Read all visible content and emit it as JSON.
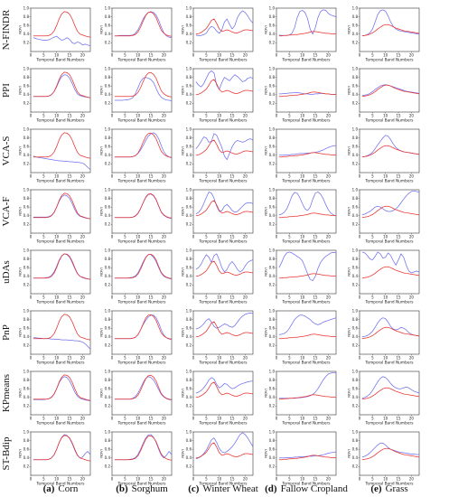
{
  "figure": {
    "rows": [
      "N-FINDR",
      "PPI",
      "VCA-S",
      "VCA-F",
      "uDAs",
      "PnP",
      "KPmeans",
      "ST-Bdip"
    ],
    "columns": [
      {
        "letter": "(a)",
        "name": "Corn"
      },
      {
        "letter": "(b)",
        "name": "Sorghum"
      },
      {
        "letter": "(c)",
        "name": "Winter Wheat"
      },
      {
        "letter": "(d)",
        "name": "Fallow Cropland"
      },
      {
        "letter": "(e)",
        "name": "Grass"
      }
    ],
    "xlabel": "Temporal Band Numbers",
    "ylabel": "NDVI",
    "colors": {
      "reference": "#e8322e",
      "estimated": "#6f6ff0"
    }
  },
  "chart_data": {
    "type": "line",
    "x": [
      1,
      2,
      3,
      4,
      5,
      6,
      7,
      8,
      9,
      10,
      11,
      12,
      13,
      14,
      15,
      16,
      17,
      18,
      19,
      20,
      21,
      22,
      23
    ],
    "xlim": [
      0,
      23
    ],
    "ylim": [
      0.0,
      1.0
    ],
    "xticks": [
      0,
      5,
      10,
      15,
      20
    ],
    "yticks": [
      0.2,
      0.4,
      0.6,
      0.8,
      1.0
    ],
    "xtick_labels": [
      "0",
      "5",
      "10",
      "15",
      "20"
    ],
    "ytick_labels": [
      "0.2",
      "0.4",
      "0.6",
      "0.8",
      "1.0"
    ],
    "reference": {
      "Corn": [
        0.36,
        0.36,
        0.36,
        0.36,
        0.36,
        0.36,
        0.37,
        0.4,
        0.47,
        0.6,
        0.76,
        0.87,
        0.92,
        0.91,
        0.86,
        0.75,
        0.6,
        0.47,
        0.4,
        0.38,
        0.36,
        0.34,
        0.33
      ],
      "Sorghum": [
        0.36,
        0.36,
        0.36,
        0.36,
        0.36,
        0.36,
        0.36,
        0.37,
        0.39,
        0.45,
        0.56,
        0.7,
        0.83,
        0.9,
        0.91,
        0.87,
        0.78,
        0.63,
        0.49,
        0.42,
        0.38,
        0.36,
        0.35
      ],
      "Winter Wheat": [
        0.4,
        0.41,
        0.44,
        0.48,
        0.53,
        0.62,
        0.72,
        0.75,
        0.65,
        0.52,
        0.46,
        0.48,
        0.5,
        0.48,
        0.45,
        0.43,
        0.43,
        0.45,
        0.48,
        0.5,
        0.5,
        0.49,
        0.48
      ],
      "Fallow Cropland": [
        0.36,
        0.36,
        0.37,
        0.37,
        0.38,
        0.38,
        0.39,
        0.39,
        0.4,
        0.41,
        0.42,
        0.43,
        0.45,
        0.46,
        0.46,
        0.45,
        0.44,
        0.43,
        0.42,
        0.42,
        0.41,
        0.41,
        0.4
      ],
      "Grass": [
        0.36,
        0.37,
        0.38,
        0.4,
        0.43,
        0.47,
        0.52,
        0.56,
        0.6,
        0.62,
        0.62,
        0.6,
        0.57,
        0.54,
        0.52,
        0.5,
        0.48,
        0.47,
        0.46,
        0.45,
        0.44,
        0.43,
        0.42
      ]
    },
    "estimated": {
      "N-FINDR": {
        "Corn": [
          0.32,
          0.3,
          0.28,
          0.27,
          0.26,
          0.26,
          0.27,
          0.3,
          0.33,
          0.35,
          0.3,
          0.26,
          0.28,
          0.32,
          0.28,
          0.2,
          0.18,
          0.22,
          0.2,
          0.15,
          0.17,
          0.15,
          0.13
        ],
        "Sorghum": [
          0.36,
          0.36,
          0.37,
          0.37,
          0.37,
          0.37,
          0.37,
          0.38,
          0.42,
          0.5,
          0.62,
          0.75,
          0.84,
          0.9,
          0.92,
          0.9,
          0.84,
          0.72,
          0.56,
          0.43,
          0.36,
          0.33,
          0.32
        ],
        "Winter Wheat": [
          0.38,
          0.36,
          0.37,
          0.39,
          0.42,
          0.52,
          0.58,
          0.55,
          0.47,
          0.42,
          0.5,
          0.68,
          0.75,
          0.62,
          0.52,
          0.6,
          0.78,
          0.88,
          0.94,
          0.9,
          0.82,
          0.72,
          0.65
        ],
        "Fallow Cropland": [
          0.38,
          0.37,
          0.37,
          0.37,
          0.38,
          0.42,
          0.55,
          0.78,
          0.92,
          0.95,
          0.9,
          0.76,
          0.52,
          0.4,
          0.55,
          0.78,
          0.92,
          0.96,
          0.95,
          0.88,
          0.84,
          0.82,
          0.8
        ],
        "Grass": [
          0.36,
          0.37,
          0.39,
          0.43,
          0.52,
          0.68,
          0.85,
          0.94,
          0.96,
          0.93,
          0.82,
          0.68,
          0.58,
          0.52,
          0.49,
          0.47,
          0.46,
          0.45,
          0.44,
          0.43,
          0.42,
          0.41,
          0.4
        ]
      },
      "PPI": {
        "Corn": [
          0.36,
          0.36,
          0.36,
          0.36,
          0.36,
          0.36,
          0.37,
          0.4,
          0.47,
          0.58,
          0.72,
          0.82,
          0.86,
          0.85,
          0.78,
          0.66,
          0.52,
          0.42,
          0.38,
          0.36,
          0.35,
          0.34,
          0.33
        ],
        "Sorghum": [
          0.27,
          0.27,
          0.27,
          0.27,
          0.28,
          0.28,
          0.3,
          0.33,
          0.42,
          0.56,
          0.7,
          0.78,
          0.8,
          0.78,
          0.75,
          0.68,
          0.55,
          0.42,
          0.34,
          0.3,
          0.28,
          0.27,
          0.26
        ],
        "Winter Wheat": [
          0.7,
          0.62,
          0.58,
          0.65,
          0.78,
          0.9,
          0.95,
          0.9,
          0.62,
          0.52,
          0.68,
          0.8,
          0.76,
          0.72,
          0.8,
          0.86,
          0.82,
          0.76,
          0.7,
          0.72,
          0.78,
          0.8,
          0.78
        ],
        "Fallow Cropland": [
          0.42,
          0.42,
          0.43,
          0.43,
          0.44,
          0.44,
          0.45,
          0.45,
          0.44,
          0.43,
          0.42,
          0.42,
          0.41,
          0.41,
          0.42,
          0.42,
          0.43,
          0.43,
          0.42,
          0.42,
          0.41,
          0.41,
          0.4
        ],
        "Grass": [
          0.38,
          0.39,
          0.4,
          0.43,
          0.47,
          0.52,
          0.56,
          0.6,
          0.62,
          0.63,
          0.62,
          0.6,
          0.58,
          0.56,
          0.54,
          0.52,
          0.5,
          0.48,
          0.47,
          0.46,
          0.45,
          0.44,
          0.43
        ]
      },
      "VCA-S": {
        "Corn": [
          0.38,
          0.36,
          0.35,
          0.34,
          0.33,
          0.32,
          0.31,
          0.3,
          0.29,
          0.28,
          0.27,
          0.27,
          0.26,
          0.26,
          0.25,
          0.25,
          0.24,
          0.24,
          0.23,
          0.22,
          0.18,
          0.12,
          0.07
        ],
        "Sorghum": [
          0.36,
          0.36,
          0.36,
          0.36,
          0.36,
          0.36,
          0.36,
          0.37,
          0.39,
          0.44,
          0.52,
          0.62,
          0.74,
          0.84,
          0.9,
          0.92,
          0.88,
          0.78,
          0.62,
          0.48,
          0.4,
          0.36,
          0.34
        ],
        "Winter Wheat": [
          0.55,
          0.62,
          0.72,
          0.82,
          0.8,
          0.7,
          0.72,
          0.9,
          0.86,
          0.72,
          0.58,
          0.38,
          0.3,
          0.45,
          0.6,
          0.7,
          0.74,
          0.72,
          0.7,
          0.72,
          0.76,
          0.78,
          0.75
        ],
        "Fallow Cropland": [
          0.4,
          0.4,
          0.4,
          0.41,
          0.41,
          0.42,
          0.42,
          0.43,
          0.44,
          0.44,
          0.44,
          0.45,
          0.45,
          0.46,
          0.47,
          0.48,
          0.5,
          0.52,
          0.55,
          0.58,
          0.6,
          0.62,
          0.62
        ],
        "Grass": [
          0.36,
          0.37,
          0.39,
          0.42,
          0.47,
          0.55,
          0.64,
          0.72,
          0.8,
          0.86,
          0.84,
          0.76,
          0.66,
          0.58,
          0.53,
          0.5,
          0.48,
          0.47,
          0.46,
          0.45,
          0.44,
          0.43,
          0.42
        ]
      },
      "VCA-F": {
        "Corn": [
          0.37,
          0.37,
          0.37,
          0.37,
          0.37,
          0.37,
          0.38,
          0.41,
          0.48,
          0.6,
          0.74,
          0.84,
          0.88,
          0.86,
          0.8,
          0.68,
          0.54,
          0.44,
          0.39,
          0.37,
          0.35,
          0.34,
          0.33
        ],
        "Sorghum": [
          0.36,
          0.36,
          0.36,
          0.36,
          0.36,
          0.36,
          0.36,
          0.37,
          0.4,
          0.46,
          0.57,
          0.7,
          0.82,
          0.89,
          0.9,
          0.86,
          0.77,
          0.62,
          0.48,
          0.41,
          0.37,
          0.35,
          0.34
        ],
        "Winter Wheat": [
          0.44,
          0.48,
          0.55,
          0.68,
          0.82,
          0.95,
          0.92,
          0.8,
          0.62,
          0.5,
          0.52,
          0.62,
          0.66,
          0.6,
          0.52,
          0.48,
          0.5,
          0.56,
          0.62,
          0.68,
          0.7,
          0.7,
          0.68
        ],
        "Fallow Cropland": [
          0.42,
          0.44,
          0.48,
          0.56,
          0.7,
          0.86,
          0.94,
          0.92,
          0.82,
          0.68,
          0.56,
          0.52,
          0.6,
          0.78,
          0.92,
          0.95,
          0.9,
          0.8,
          0.66,
          0.54,
          0.46,
          0.42,
          0.4
        ],
        "Grass": [
          0.42,
          0.44,
          0.47,
          0.5,
          0.55,
          0.6,
          0.62,
          0.6,
          0.56,
          0.52,
          0.5,
          0.5,
          0.52,
          0.56,
          0.62,
          0.7,
          0.78,
          0.86,
          0.92,
          0.96,
          0.97,
          0.96,
          0.94
        ]
      },
      "uDAs": {
        "Corn": [
          0.36,
          0.36,
          0.36,
          0.36,
          0.36,
          0.37,
          0.38,
          0.42,
          0.5,
          0.63,
          0.78,
          0.88,
          0.92,
          0.9,
          0.84,
          0.72,
          0.58,
          0.46,
          0.4,
          0.37,
          0.35,
          0.34,
          0.33
        ],
        "Sorghum": [
          0.36,
          0.36,
          0.36,
          0.36,
          0.36,
          0.36,
          0.37,
          0.38,
          0.41,
          0.48,
          0.6,
          0.73,
          0.84,
          0.9,
          0.9,
          0.84,
          0.74,
          0.6,
          0.47,
          0.4,
          0.37,
          0.35,
          0.34
        ],
        "Winter Wheat": [
          0.56,
          0.6,
          0.68,
          0.8,
          0.9,
          0.84,
          0.72,
          0.88,
          0.92,
          0.78,
          0.6,
          0.5,
          0.56,
          0.68,
          0.74,
          0.66,
          0.56,
          0.5,
          0.54,
          0.64,
          0.72,
          0.76,
          0.78
        ],
        "Fallow Cropland": [
          0.6,
          0.72,
          0.86,
          0.94,
          0.96,
          0.94,
          0.9,
          0.86,
          0.82,
          0.76,
          0.62,
          0.46,
          0.33,
          0.3,
          0.4,
          0.58,
          0.72,
          0.8,
          0.86,
          0.9,
          0.94,
          0.95,
          0.94
        ],
        "Grass": [
          0.96,
          0.94,
          0.88,
          0.8,
          0.78,
          0.86,
          0.96,
          0.92,
          0.82,
          0.84,
          0.94,
          0.88,
          0.76,
          0.66,
          0.78,
          0.92,
          0.84,
          0.66,
          0.52,
          0.48,
          0.5,
          0.52,
          0.5
        ]
      },
      "PnP": {
        "Corn": [
          0.38,
          0.38,
          0.37,
          0.37,
          0.36,
          0.36,
          0.36,
          0.35,
          0.35,
          0.34,
          0.34,
          0.33,
          0.33,
          0.33,
          0.32,
          0.32,
          0.31,
          0.31,
          0.3,
          0.28,
          0.24,
          0.18,
          0.12
        ],
        "Sorghum": [
          0.36,
          0.36,
          0.36,
          0.36,
          0.36,
          0.36,
          0.36,
          0.37,
          0.39,
          0.45,
          0.56,
          0.68,
          0.78,
          0.86,
          0.9,
          0.9,
          0.84,
          0.72,
          0.56,
          0.44,
          0.38,
          0.35,
          0.34
        ],
        "Winter Wheat": [
          0.58,
          0.6,
          0.64,
          0.7,
          0.78,
          0.82,
          0.74,
          0.64,
          0.6,
          0.62,
          0.66,
          0.7,
          0.68,
          0.64,
          0.62,
          0.66,
          0.74,
          0.82,
          0.88,
          0.92,
          0.94,
          0.95,
          0.94
        ],
        "Fallow Cropland": [
          0.45,
          0.46,
          0.48,
          0.52,
          0.6,
          0.7,
          0.8,
          0.86,
          0.9,
          0.9,
          0.88,
          0.84,
          0.8,
          0.74,
          0.7,
          0.68,
          0.7,
          0.74,
          0.76,
          0.78,
          0.8,
          0.82,
          0.84
        ],
        "Grass": [
          0.4,
          0.41,
          0.43,
          0.47,
          0.53,
          0.62,
          0.72,
          0.8,
          0.84,
          0.82,
          0.74,
          0.64,
          0.58,
          0.56,
          0.58,
          0.62,
          0.6,
          0.56,
          0.5,
          0.46,
          0.44,
          0.43,
          0.42
        ]
      },
      "KPmeans": {
        "Corn": [
          0.35,
          0.35,
          0.35,
          0.35,
          0.35,
          0.36,
          0.37,
          0.41,
          0.48,
          0.6,
          0.74,
          0.84,
          0.88,
          0.86,
          0.78,
          0.66,
          0.52,
          0.43,
          0.38,
          0.36,
          0.34,
          0.33,
          0.32
        ],
        "Sorghum": [
          0.36,
          0.36,
          0.36,
          0.36,
          0.36,
          0.36,
          0.36,
          0.38,
          0.42,
          0.5,
          0.62,
          0.74,
          0.84,
          0.88,
          0.86,
          0.8,
          0.7,
          0.58,
          0.47,
          0.41,
          0.37,
          0.35,
          0.34
        ],
        "Winter Wheat": [
          0.5,
          0.52,
          0.56,
          0.62,
          0.7,
          0.8,
          0.86,
          0.82,
          0.7,
          0.62,
          0.66,
          0.72,
          0.7,
          0.64,
          0.6,
          0.62,
          0.66,
          0.7,
          0.72,
          0.74,
          0.76,
          0.77,
          0.78
        ],
        "Fallow Cropland": [
          0.38,
          0.38,
          0.38,
          0.38,
          0.38,
          0.38,
          0.38,
          0.39,
          0.39,
          0.4,
          0.41,
          0.42,
          0.44,
          0.47,
          0.52,
          0.6,
          0.7,
          0.8,
          0.88,
          0.94,
          0.96,
          0.97,
          0.96
        ],
        "Grass": [
          0.38,
          0.4,
          0.43,
          0.48,
          0.56,
          0.66,
          0.76,
          0.84,
          0.88,
          0.86,
          0.8,
          0.72,
          0.66,
          0.62,
          0.6,
          0.6,
          0.62,
          0.64,
          0.62,
          0.58,
          0.54,
          0.52,
          0.5
        ]
      },
      "ST-Bdip": {
        "Corn": [
          0.36,
          0.36,
          0.36,
          0.36,
          0.36,
          0.36,
          0.37,
          0.4,
          0.47,
          0.6,
          0.76,
          0.88,
          0.94,
          0.92,
          0.85,
          0.73,
          0.58,
          0.46,
          0.4,
          0.42,
          0.5,
          0.55,
          0.48
        ],
        "Sorghum": [
          0.36,
          0.36,
          0.36,
          0.36,
          0.36,
          0.36,
          0.37,
          0.38,
          0.41,
          0.48,
          0.6,
          0.74,
          0.86,
          0.93,
          0.94,
          0.88,
          0.76,
          0.6,
          0.46,
          0.4,
          0.46,
          0.55,
          0.48
        ],
        "Winter Wheat": [
          0.38,
          0.4,
          0.44,
          0.5,
          0.58,
          0.7,
          0.82,
          0.86,
          0.76,
          0.62,
          0.54,
          0.52,
          0.55,
          0.6,
          0.66,
          0.74,
          0.84,
          0.94,
          0.98,
          0.94,
          0.86,
          0.76,
          0.66
        ],
        "Fallow Cropland": [
          0.4,
          0.4,
          0.4,
          0.41,
          0.41,
          0.41,
          0.42,
          0.42,
          0.43,
          0.43,
          0.43,
          0.44,
          0.44,
          0.44,
          0.45,
          0.45,
          0.46,
          0.47,
          0.49,
          0.51,
          0.52,
          0.53,
          0.54
        ],
        "Grass": [
          0.42,
          0.44,
          0.47,
          0.52,
          0.58,
          0.64,
          0.7,
          0.74,
          0.74,
          0.7,
          0.64,
          0.6,
          0.58,
          0.56,
          0.54,
          0.53,
          0.52,
          0.51,
          0.5,
          0.49,
          0.49,
          0.48,
          0.48
        ]
      }
    }
  }
}
